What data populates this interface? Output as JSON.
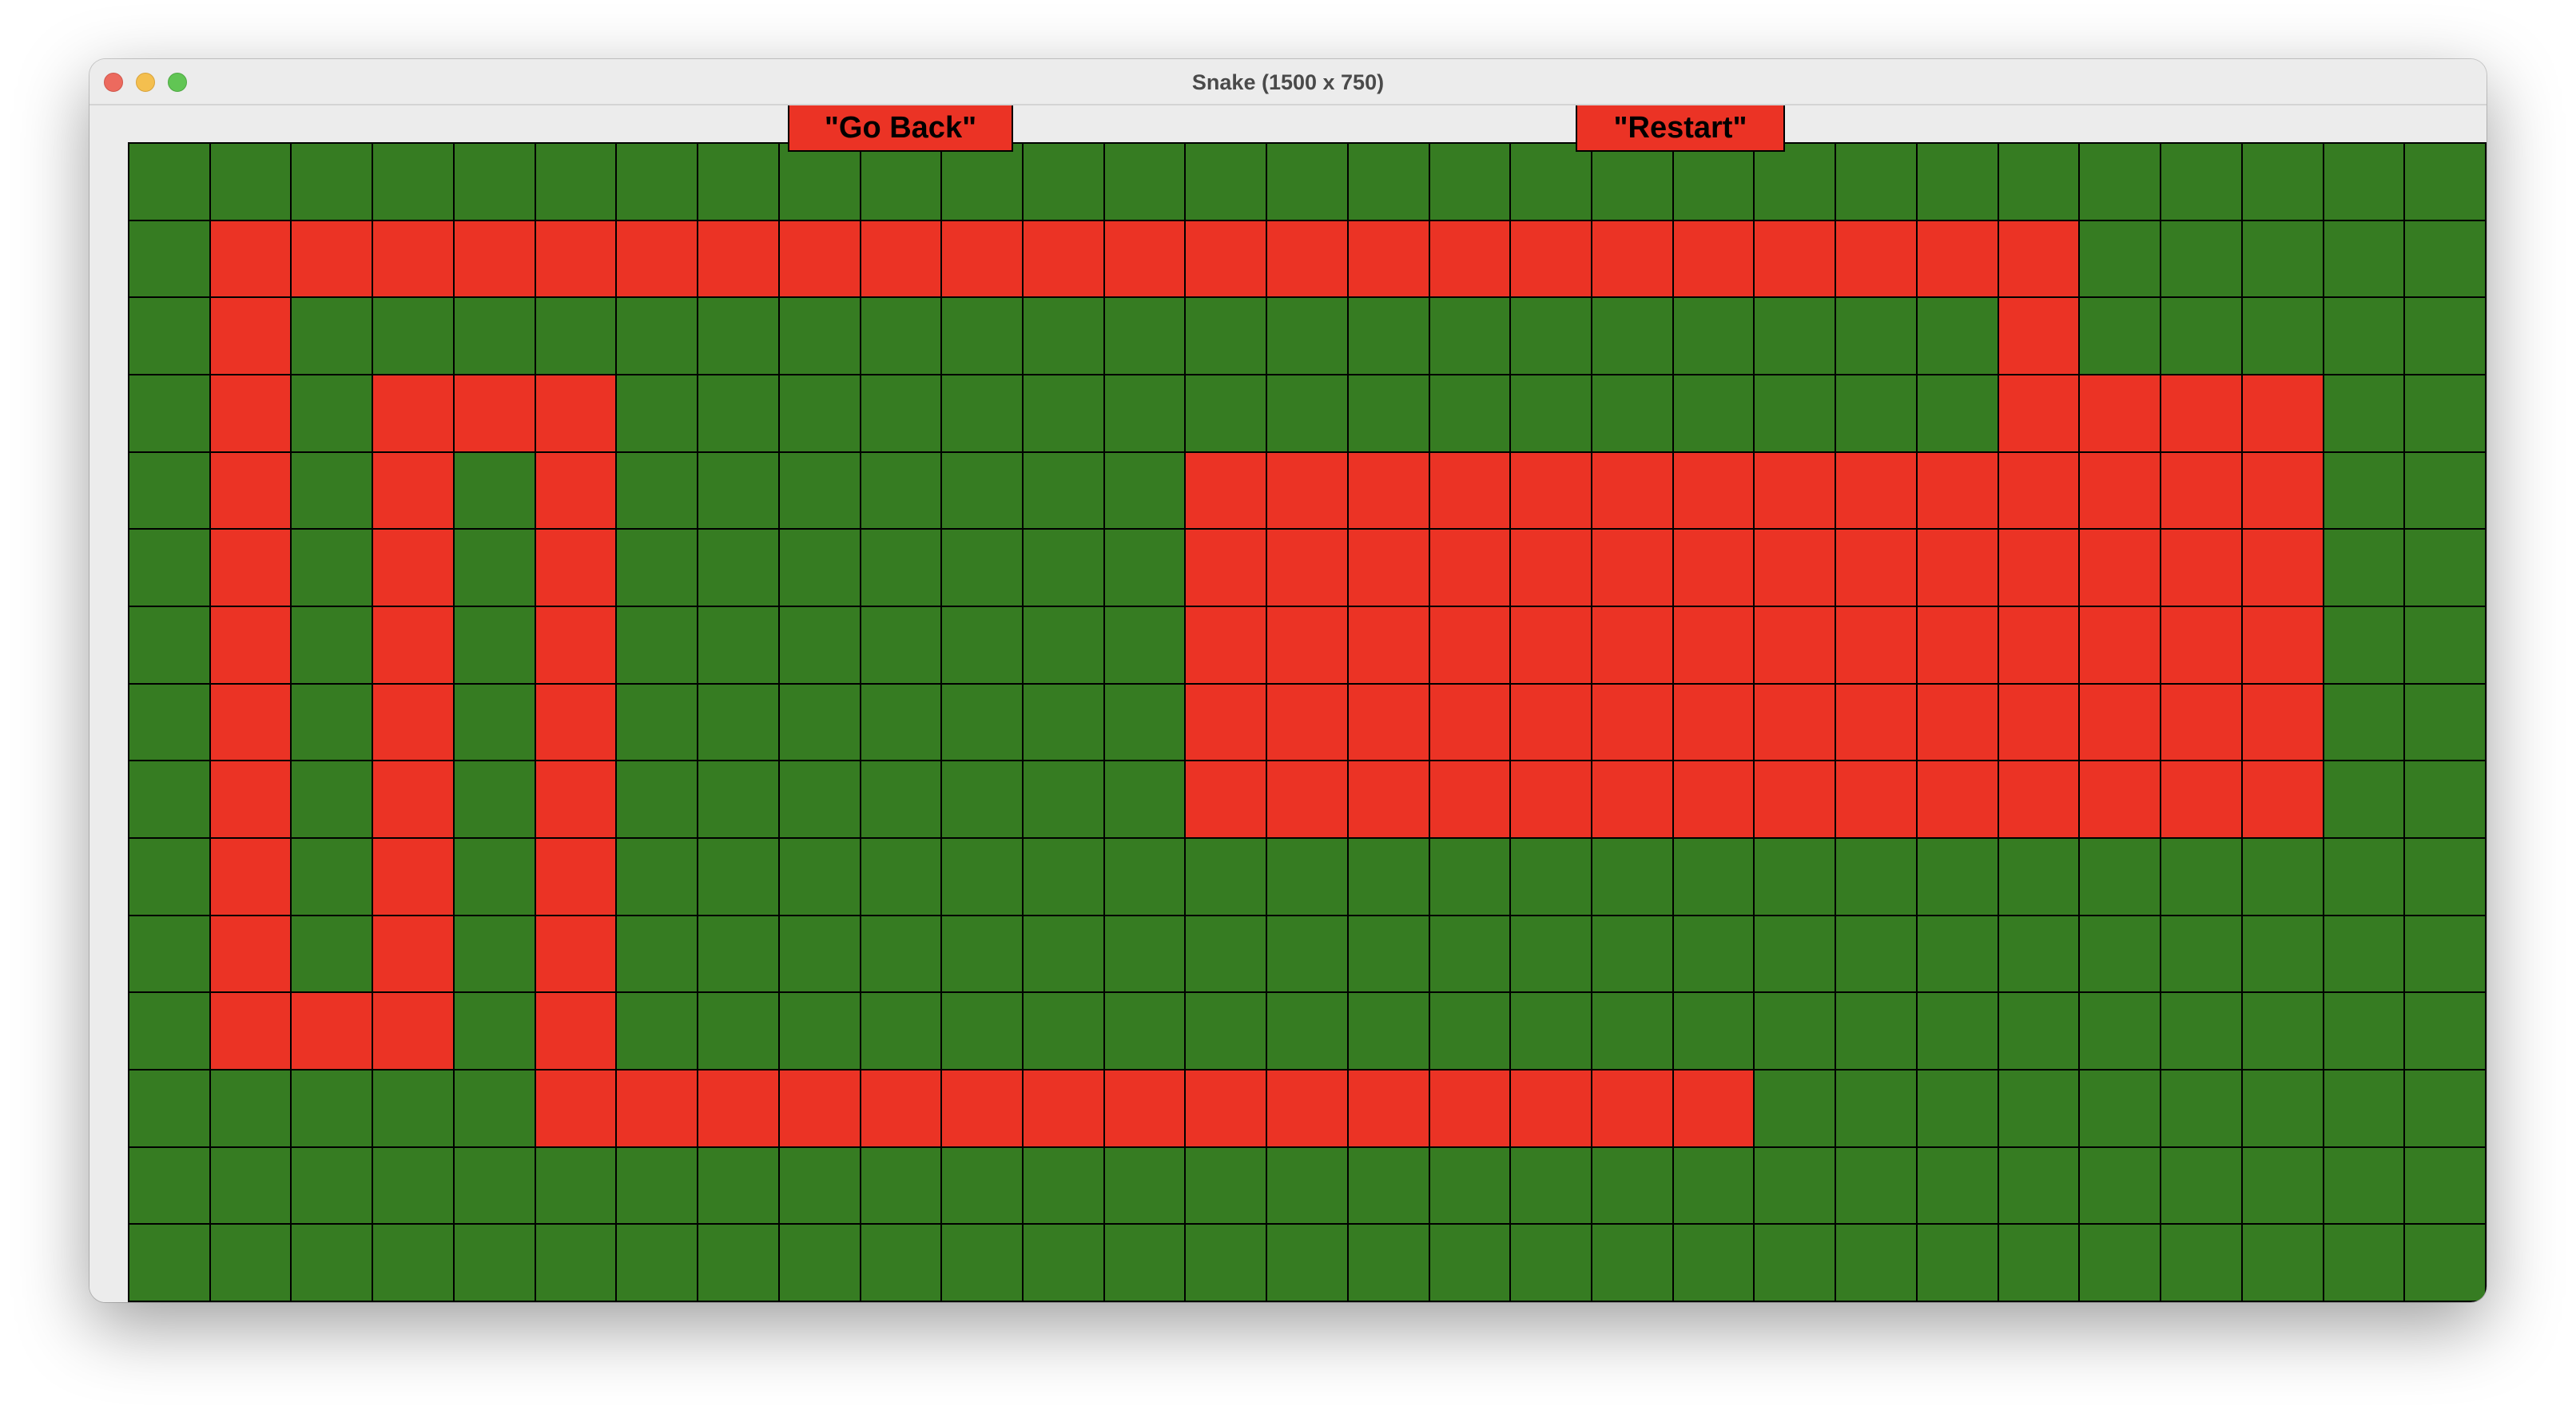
{
  "window": {
    "title": "Snake (1500 x 750)"
  },
  "buttons": {
    "go_back_label": "\"Go Back\"",
    "restart_label": "\"Restart\""
  },
  "colors": {
    "board_green": "#367c22",
    "snake_red": "#eb3325",
    "grid_line": "#000000"
  },
  "grid": {
    "columns": 29,
    "rows": 15,
    "filled": [
      [
        1,
        1
      ],
      [
        1,
        2
      ],
      [
        1,
        3
      ],
      [
        1,
        4
      ],
      [
        1,
        5
      ],
      [
        1,
        6
      ],
      [
        1,
        7
      ],
      [
        1,
        8
      ],
      [
        1,
        9
      ],
      [
        1,
        10
      ],
      [
        1,
        11
      ],
      [
        1,
        12
      ],
      [
        1,
        13
      ],
      [
        1,
        14
      ],
      [
        1,
        15
      ],
      [
        1,
        16
      ],
      [
        1,
        17
      ],
      [
        1,
        18
      ],
      [
        1,
        19
      ],
      [
        1,
        20
      ],
      [
        1,
        21
      ],
      [
        1,
        22
      ],
      [
        1,
        23
      ],
      [
        2,
        1
      ],
      [
        2,
        23
      ],
      [
        3,
        1
      ],
      [
        3,
        3
      ],
      [
        3,
        4
      ],
      [
        3,
        5
      ],
      [
        3,
        23
      ],
      [
        3,
        24
      ],
      [
        3,
        25
      ],
      [
        3,
        26
      ],
      [
        4,
        1
      ],
      [
        4,
        3
      ],
      [
        4,
        5
      ],
      [
        4,
        13
      ],
      [
        4,
        14
      ],
      [
        4,
        15
      ],
      [
        4,
        16
      ],
      [
        4,
        17
      ],
      [
        4,
        18
      ],
      [
        4,
        19
      ],
      [
        4,
        20
      ],
      [
        4,
        21
      ],
      [
        4,
        22
      ],
      [
        4,
        23
      ],
      [
        4,
        24
      ],
      [
        4,
        25
      ],
      [
        4,
        26
      ],
      [
        5,
        1
      ],
      [
        5,
        3
      ],
      [
        5,
        5
      ],
      [
        5,
        13
      ],
      [
        5,
        14
      ],
      [
        5,
        15
      ],
      [
        5,
        16
      ],
      [
        5,
        17
      ],
      [
        5,
        18
      ],
      [
        5,
        19
      ],
      [
        5,
        20
      ],
      [
        5,
        21
      ],
      [
        5,
        22
      ],
      [
        5,
        23
      ],
      [
        5,
        24
      ],
      [
        5,
        25
      ],
      [
        5,
        26
      ],
      [
        6,
        1
      ],
      [
        6,
        3
      ],
      [
        6,
        5
      ],
      [
        6,
        13
      ],
      [
        6,
        14
      ],
      [
        6,
        15
      ],
      [
        6,
        16
      ],
      [
        6,
        17
      ],
      [
        6,
        18
      ],
      [
        6,
        19
      ],
      [
        6,
        20
      ],
      [
        6,
        21
      ],
      [
        6,
        22
      ],
      [
        6,
        23
      ],
      [
        6,
        24
      ],
      [
        6,
        25
      ],
      [
        6,
        26
      ],
      [
        7,
        1
      ],
      [
        7,
        3
      ],
      [
        7,
        5
      ],
      [
        7,
        13
      ],
      [
        7,
        14
      ],
      [
        7,
        15
      ],
      [
        7,
        16
      ],
      [
        7,
        17
      ],
      [
        7,
        18
      ],
      [
        7,
        19
      ],
      [
        7,
        20
      ],
      [
        7,
        21
      ],
      [
        7,
        22
      ],
      [
        7,
        23
      ],
      [
        7,
        24
      ],
      [
        7,
        25
      ],
      [
        7,
        26
      ],
      [
        8,
        1
      ],
      [
        8,
        3
      ],
      [
        8,
        5
      ],
      [
        8,
        13
      ],
      [
        8,
        14
      ],
      [
        8,
        15
      ],
      [
        8,
        16
      ],
      [
        8,
        17
      ],
      [
        8,
        18
      ],
      [
        8,
        19
      ],
      [
        8,
        20
      ],
      [
        8,
        21
      ],
      [
        8,
        22
      ],
      [
        8,
        23
      ],
      [
        8,
        24
      ],
      [
        8,
        25
      ],
      [
        8,
        26
      ],
      [
        9,
        1
      ],
      [
        9,
        3
      ],
      [
        9,
        5
      ],
      [
        10,
        1
      ],
      [
        10,
        3
      ],
      [
        10,
        5
      ],
      [
        11,
        1
      ],
      [
        11,
        2
      ],
      [
        11,
        3
      ],
      [
        11,
        5
      ],
      [
        12,
        5
      ],
      [
        12,
        6
      ],
      [
        12,
        7
      ],
      [
        12,
        8
      ],
      [
        12,
        9
      ],
      [
        12,
        10
      ],
      [
        12,
        11
      ],
      [
        12,
        12
      ],
      [
        12,
        13
      ],
      [
        12,
        14
      ],
      [
        12,
        15
      ],
      [
        12,
        16
      ],
      [
        12,
        17
      ],
      [
        12,
        18
      ],
      [
        12,
        19
      ]
    ]
  }
}
